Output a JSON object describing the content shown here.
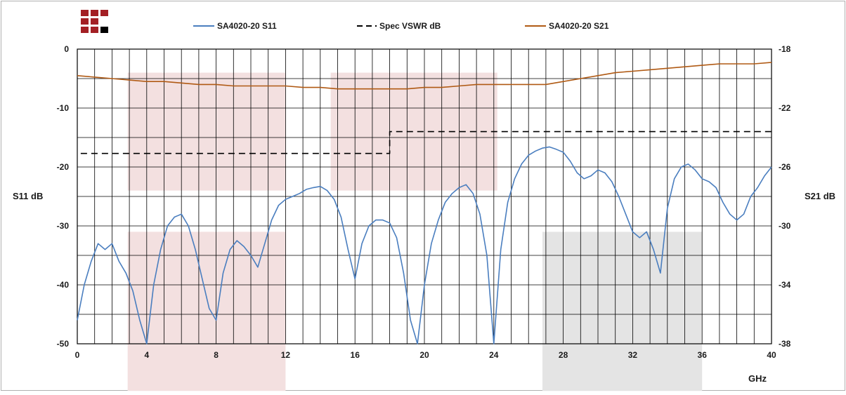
{
  "chart_data": {
    "type": "line",
    "title": "",
    "xlabel": "GHz",
    "ylabel": "S11 dB",
    "y2label": "S21 dB",
    "xlim": [
      0,
      40
    ],
    "ylim": [
      -50,
      0
    ],
    "y2lim": [
      -38,
      -18
    ],
    "xticks": [
      0,
      4,
      8,
      12,
      16,
      20,
      24,
      28,
      32,
      36,
      40
    ],
    "yticks": [
      0,
      -10,
      -20,
      -30,
      -40,
      -50
    ],
    "y2ticks": [
      -18,
      -22,
      -26,
      -30,
      -34,
      -38
    ],
    "x_minor_step": 1,
    "y_minor_step": 5,
    "grid": true,
    "legend_position": "top",
    "shaded_regions": [
      {
        "x": [
          2.9,
          12
        ],
        "y": [
          -24,
          -4
        ],
        "color": "#f3e0e0"
      },
      {
        "x": [
          14.6,
          24.2
        ],
        "y": [
          -24,
          -4
        ],
        "color": "#f3e0e0"
      },
      {
        "x": [
          2.9,
          12
        ],
        "y": [
          -58,
          -31
        ],
        "color": "#f3e0e0"
      },
      {
        "x": [
          26.8,
          36
        ],
        "y": [
          -58,
          -31
        ],
        "color": "#e4e4e4"
      }
    ],
    "series": [
      {
        "name": "SA4020-20 S11",
        "axis": "left",
        "color": "#4a7ebf",
        "style": "solid",
        "x": [
          0,
          0.4,
          0.8,
          1.2,
          1.6,
          2.0,
          2.4,
          2.8,
          3.2,
          3.6,
          4.0,
          4.4,
          4.8,
          5.2,
          5.6,
          6.0,
          6.4,
          6.8,
          7.2,
          7.6,
          8.0,
          8.4,
          8.8,
          9.2,
          9.6,
          10.0,
          10.4,
          10.8,
          11.2,
          11.6,
          12.0,
          12.4,
          12.8,
          13.2,
          13.6,
          14.0,
          14.4,
          14.8,
          15.2,
          15.6,
          16.0,
          16.4,
          16.8,
          17.2,
          17.6,
          18.0,
          18.4,
          18.8,
          19.2,
          19.6,
          20.0,
          20.4,
          20.8,
          21.2,
          21.6,
          22.0,
          22.4,
          22.8,
          23.2,
          23.6,
          24.0,
          24.4,
          24.8,
          25.2,
          25.6,
          26.0,
          26.4,
          26.8,
          27.2,
          27.6,
          28.0,
          28.4,
          28.8,
          29.2,
          29.6,
          30.0,
          30.4,
          30.8,
          31.2,
          31.6,
          32.0,
          32.4,
          32.8,
          33.2,
          33.6,
          34.0,
          34.4,
          34.8,
          35.2,
          35.6,
          36.0,
          36.4,
          36.8,
          37.2,
          37.6,
          38.0,
          38.4,
          38.8,
          39.2,
          39.6,
          40.0
        ],
        "y": [
          -46,
          -40,
          -36,
          -33,
          -34,
          -33,
          -36,
          -38,
          -41,
          -46,
          -50,
          -40,
          -34,
          -30,
          -28.5,
          -28,
          -30,
          -34,
          -39,
          -44,
          -46,
          -38,
          -34,
          -32.5,
          -33.5,
          -35,
          -37,
          -33,
          -29,
          -26.5,
          -25.5,
          -25,
          -24.5,
          -23.8,
          -23.5,
          -23.3,
          -24,
          -25.5,
          -28.5,
          -34,
          -39,
          -33,
          -30,
          -29,
          -29,
          -29.5,
          -32,
          -38,
          -46,
          -50,
          -40,
          -33,
          -29,
          -26,
          -24.5,
          -23.5,
          -23,
          -24.5,
          -28,
          -35,
          -50,
          -34,
          -26,
          -22,
          -19.5,
          -18,
          -17.3,
          -16.8,
          -16.6,
          -17,
          -17.5,
          -19,
          -21,
          -22,
          -21.5,
          -20.5,
          -21,
          -22.5,
          -25,
          -28,
          -31,
          -32,
          -31,
          -34,
          -38,
          -27,
          -22,
          -20,
          -19.5,
          -20.5,
          -22,
          -22.5,
          -23.5,
          -26,
          -28,
          -29,
          -28,
          -25,
          -23.5,
          -21.5,
          -20
        ]
      },
      {
        "name": "Spec VSWR dB",
        "axis": "left",
        "color": "#000000",
        "style": "dashed",
        "x": [
          0.2,
          18,
          18,
          40
        ],
        "y": [
          -17.7,
          -17.7,
          -14,
          -14
        ]
      },
      {
        "name": "SA4020-20 S21",
        "axis": "right",
        "color": "#b05a14",
        "style": "solid",
        "x": [
          0,
          1,
          2,
          3,
          4,
          5,
          6,
          7,
          8,
          9,
          10,
          11,
          12,
          13,
          14,
          15,
          16,
          17,
          18,
          19,
          20,
          21,
          22,
          23,
          24,
          25,
          26,
          27,
          28,
          29,
          30,
          31,
          32,
          33,
          34,
          35,
          36,
          37,
          38,
          39,
          40
        ],
        "y": [
          -19.8,
          -19.9,
          -20.0,
          -20.1,
          -20.2,
          -20.2,
          -20.3,
          -20.4,
          -20.4,
          -20.5,
          -20.5,
          -20.5,
          -20.5,
          -20.6,
          -20.6,
          -20.7,
          -20.7,
          -20.7,
          -20.7,
          -20.7,
          -20.6,
          -20.6,
          -20.5,
          -20.4,
          -20.4,
          -20.4,
          -20.4,
          -20.4,
          -20.2,
          -20.0,
          -19.8,
          -19.6,
          -19.5,
          -19.4,
          -19.3,
          -19.2,
          -19.1,
          -19.0,
          -19.0,
          -19.0,
          -18.9
        ]
      }
    ]
  }
}
